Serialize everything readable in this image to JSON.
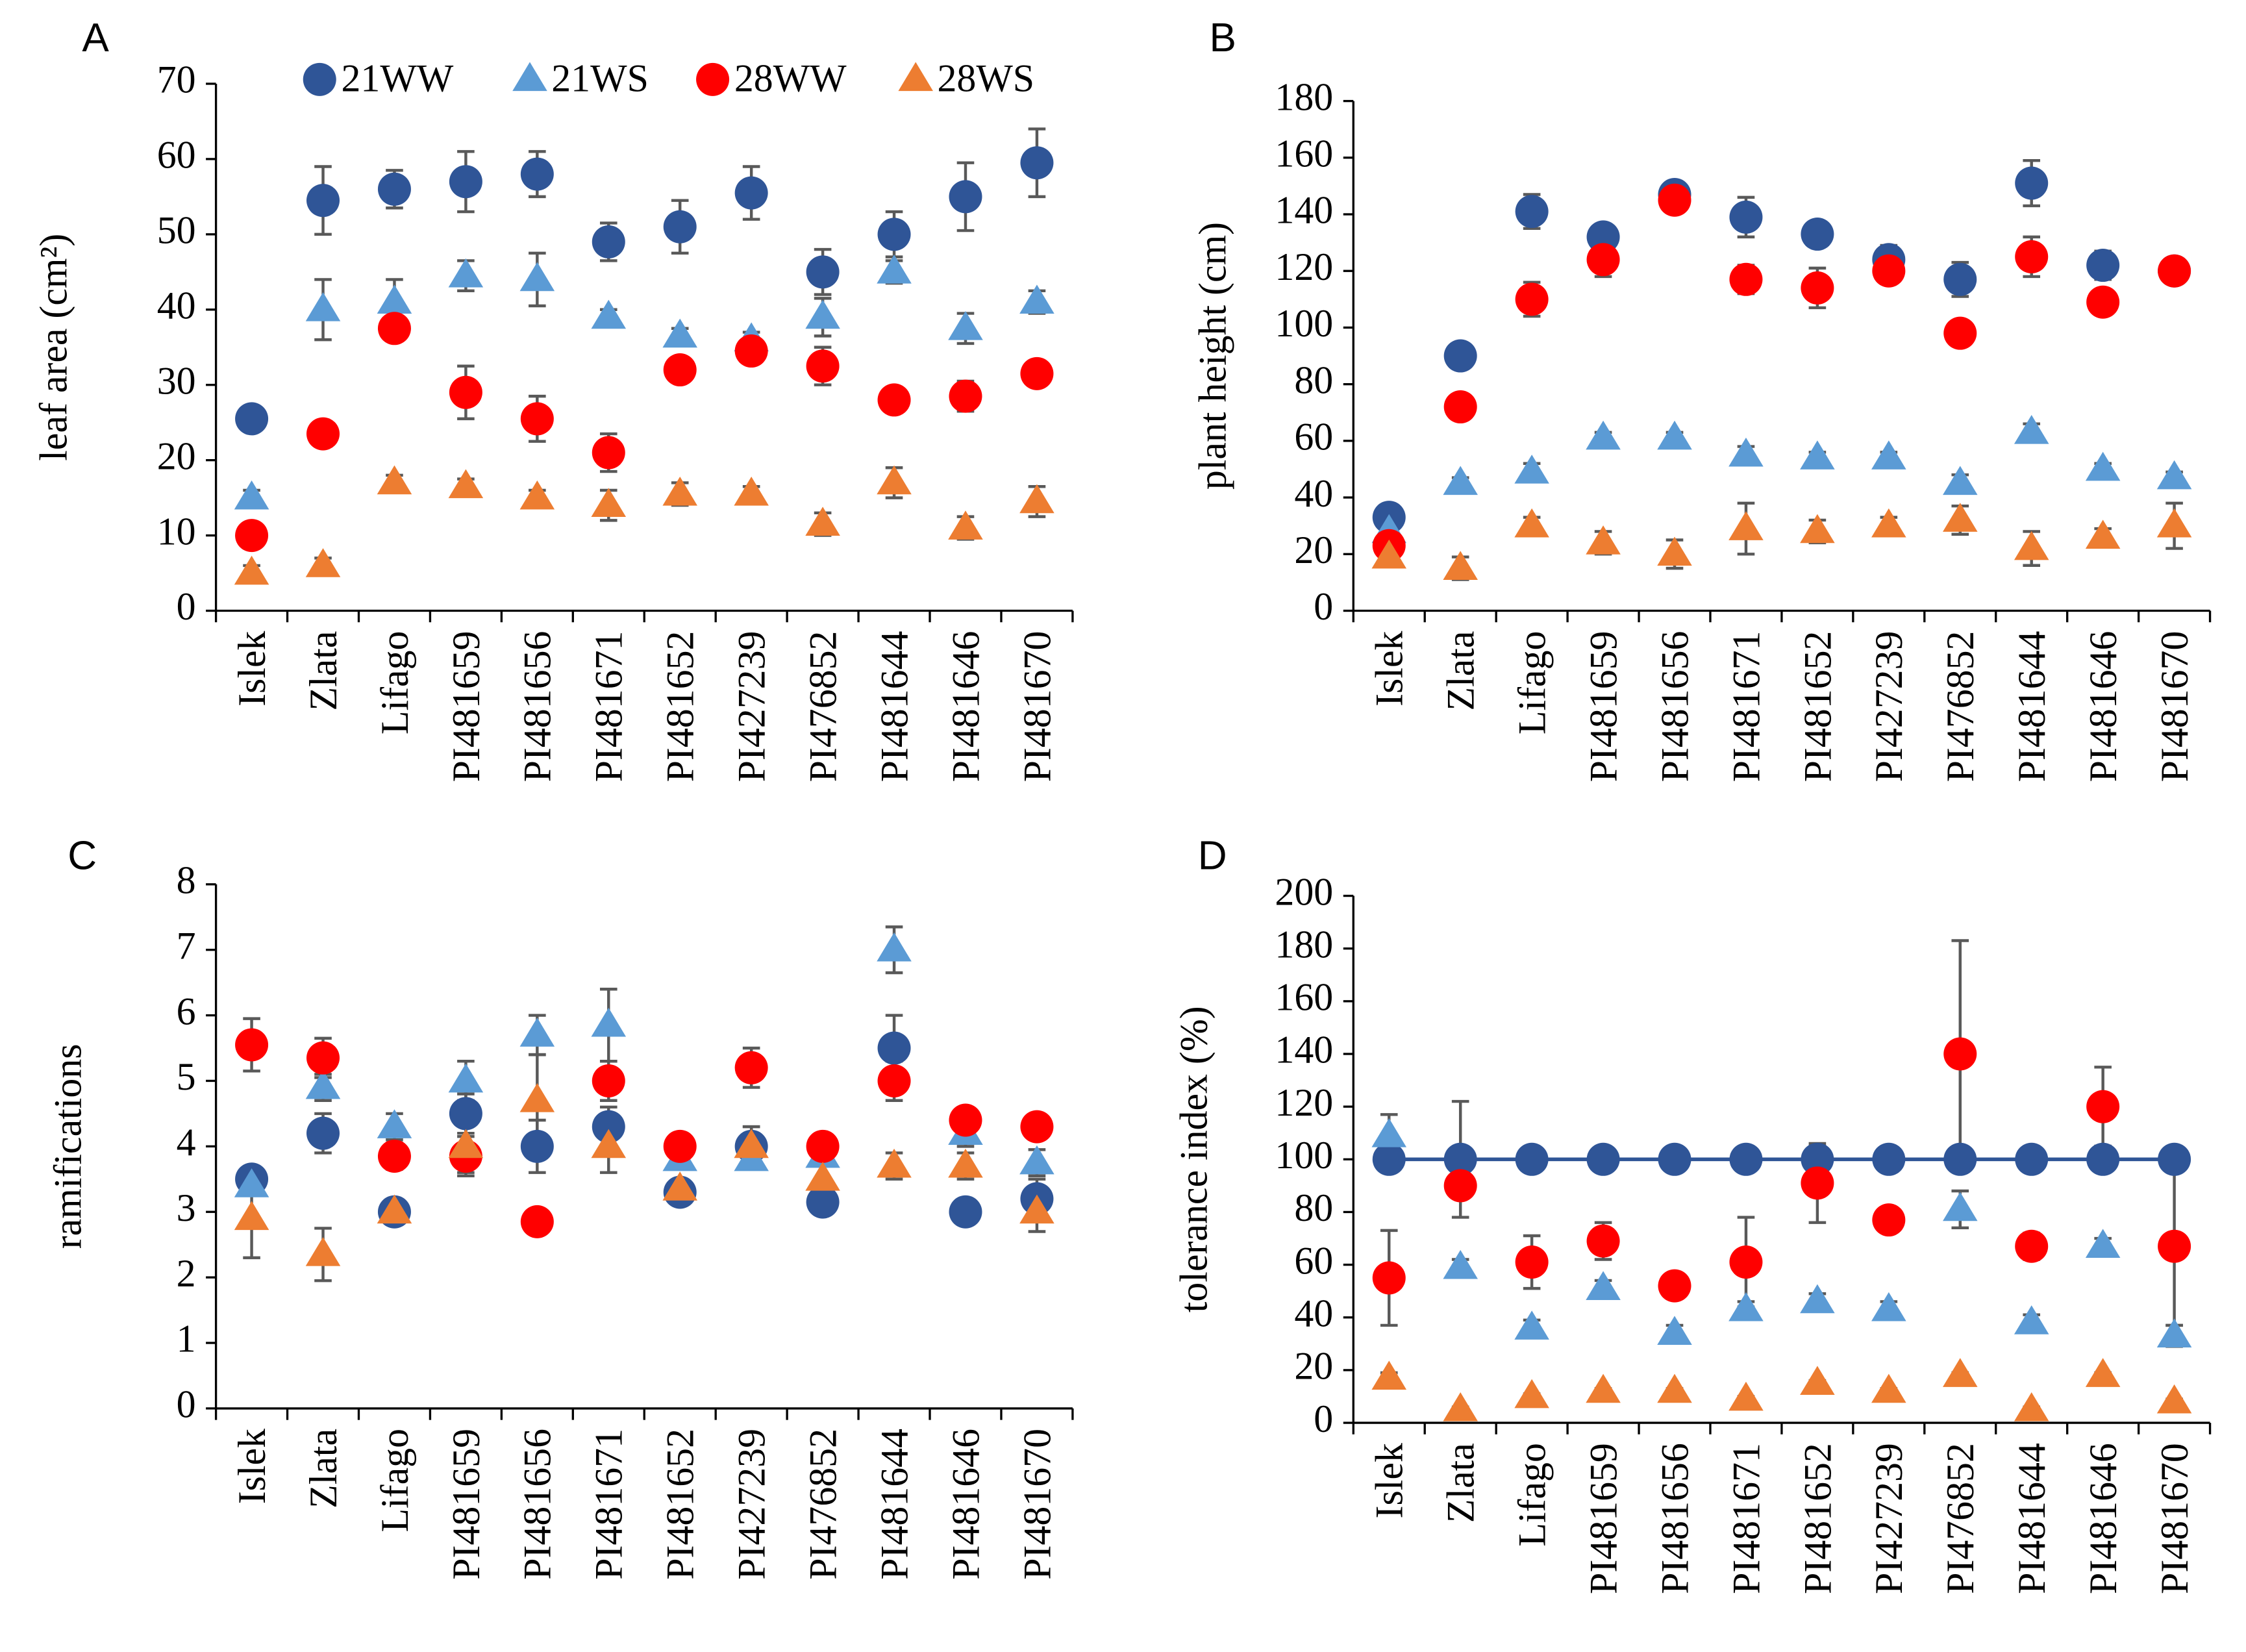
{
  "chart_data": [
    {
      "type": "scatter",
      "panel_label": "A",
      "y_label": "leaf area (cm²)",
      "legend": "top",
      "categories": [
        "Islek",
        "Zlata",
        "Lifago",
        "PI481659",
        "PI481656",
        "PI481671",
        "PI481652",
        "PI427239",
        "PI476852",
        "PI481644",
        "PI481646",
        "PI481670"
      ],
      "ylim": [
        0,
        70
      ],
      "yticks": [
        0,
        10,
        20,
        30,
        40,
        50,
        60,
        70
      ],
      "series": [
        {
          "name": "21WW",
          "color": "#2f5597",
          "marker": "circle",
          "values": [
            25.5,
            54.5,
            56,
            57,
            58,
            49,
            51,
            55.5,
            45,
            50,
            55,
            59.5
          ],
          "errors": [
            1,
            4.5,
            2.5,
            4,
            3,
            2.5,
            3.5,
            3.5,
            3,
            3,
            4.5,
            4.5
          ]
        },
        {
          "name": "21WS",
          "color": "#5b9bd5",
          "marker": "triangle",
          "values": [
            15,
            40,
            41,
            44.5,
            44,
            39,
            36.5,
            36,
            39,
            45,
            37.5,
            41
          ],
          "errors": [
            1,
            4,
            3,
            2,
            3.5,
            1,
            1,
            1,
            2.5,
            1.5,
            2,
            1.5
          ]
        },
        {
          "name": "28WW",
          "color": "#ff0000",
          "marker": "circle",
          "values": [
            10,
            23.5,
            37.5,
            29,
            25.5,
            21,
            32,
            34.5,
            32.5,
            28,
            28.5,
            31.5
          ],
          "errors": [
            1,
            1,
            1,
            3.5,
            3,
            2.5,
            1,
            1,
            2.5,
            1,
            2,
            1
          ]
        },
        {
          "name": "28WS",
          "color": "#ed7d31",
          "marker": "triangle",
          "values": [
            5,
            6,
            17,
            16.5,
            15,
            14,
            15.5,
            15.5,
            11.5,
            17,
            11,
            14.5
          ],
          "errors": [
            1,
            1,
            1,
            1,
            1,
            2,
            1.5,
            1,
            1.5,
            2,
            1.5,
            2
          ]
        }
      ]
    },
    {
      "type": "scatter",
      "panel_label": "B",
      "y_label": "plant height (cm)",
      "categories": [
        "Islek",
        "Zlata",
        "Lifago",
        "PI481659",
        "PI481656",
        "PI481671",
        "PI481652",
        "PI427239",
        "PI476852",
        "PI481644",
        "PI481646",
        "PI481670"
      ],
      "ylim": [
        0,
        180
      ],
      "yticks": [
        0,
        20,
        40,
        60,
        80,
        100,
        120,
        140,
        160,
        180
      ],
      "series": [
        {
          "color": "#2f5597",
          "marker": "circle",
          "values": [
            33,
            90,
            141,
            132,
            147,
            139,
            133,
            124,
            117,
            151,
            122,
            120
          ],
          "errors": [
            2,
            3,
            6,
            3,
            4,
            7,
            3,
            5,
            6,
            8,
            5,
            3
          ]
        },
        {
          "color": "#5b9bd5",
          "marker": "triangle",
          "values": [
            28,
            45,
            49,
            61,
            61,
            55,
            54,
            54,
            45,
            63,
            50,
            47
          ],
          "errors": [
            2,
            2,
            3,
            2,
            2,
            3,
            2,
            2,
            3,
            3,
            2,
            2
          ]
        },
        {
          "color": "#ff0000",
          "marker": "circle",
          "values": [
            23,
            72,
            110,
            124,
            145,
            117,
            114,
            120,
            98,
            125,
            109,
            120
          ],
          "errors": [
            2,
            3,
            6,
            6,
            3,
            5,
            7,
            3,
            3,
            7,
            3,
            3
          ]
        },
        {
          "color": "#ed7d31",
          "marker": "triangle",
          "values": [
            19,
            15,
            30,
            24,
            20,
            29,
            28,
            30,
            32,
            22,
            26,
            30
          ],
          "errors": [
            2,
            4,
            3,
            4,
            5,
            9,
            4,
            3,
            5,
            6,
            3,
            8
          ]
        }
      ]
    },
    {
      "type": "scatter",
      "panel_label": "C",
      "y_label": "ramifications",
      "categories": [
        "Islek",
        "Zlata",
        "Lifago",
        "PI481659",
        "PI481656",
        "PI481671",
        "PI481652",
        "PI427239",
        "PI476852",
        "PI481644",
        "PI481646",
        "PI481670"
      ],
      "ylim": [
        0,
        8
      ],
      "yticks": [
        0,
        1,
        2,
        3,
        4,
        5,
        6,
        7,
        8
      ],
      "series": [
        {
          "color": "#2f5597",
          "marker": "circle",
          "values": [
            3.5,
            4.2,
            3.0,
            4.5,
            4.0,
            4.3,
            3.3,
            4.0,
            3.15,
            5.5,
            3.0,
            3.2
          ],
          "errors": [
            0.1,
            0.3,
            0.1,
            0.3,
            0.4,
            0.3,
            0.15,
            0.3,
            0.15,
            0.5,
            0.1,
            0.3
          ]
        },
        {
          "color": "#5b9bd5",
          "marker": "triangle",
          "values": [
            3.4,
            4.9,
            4.3,
            5.0,
            5.7,
            5.85,
            3.8,
            3.8,
            3.85,
            7.0,
            4.2,
            3.75
          ],
          "errors": [
            0.1,
            0.2,
            0.2,
            0.3,
            0.3,
            0.55,
            0.15,
            0.15,
            0.15,
            0.35,
            0.2,
            0.2
          ]
        },
        {
          "color": "#ff0000",
          "marker": "circle",
          "values": [
            5.55,
            5.35,
            3.85,
            3.85,
            2.85,
            5.0,
            4.0,
            5.2,
            4.0,
            5.0,
            4.4,
            4.3
          ],
          "errors": [
            0.4,
            0.3,
            0.2,
            0.3,
            0.15,
            0.3,
            0.1,
            0.3,
            0.1,
            0.3,
            0.1,
            0.1
          ]
        },
        {
          "color": "#ed7d31",
          "marker": "triangle",
          "values": [
            2.9,
            2.35,
            3.0,
            4.0,
            4.7,
            4.0,
            3.35,
            4.0,
            3.5,
            3.7,
            3.7,
            3.0
          ],
          "errors": [
            0.6,
            0.4,
            0.1,
            0.4,
            0.7,
            0.4,
            0.1,
            0.3,
            0.2,
            0.2,
            0.2,
            0.3
          ]
        }
      ]
    },
    {
      "type": "scatter",
      "panel_label": "D",
      "y_label": "tolerance index (%)",
      "categories": [
        "Islek",
        "Zlata",
        "Lifago",
        "PI481659",
        "PI481656",
        "PI481671",
        "PI481652",
        "PI427239",
        "PI476852",
        "PI481644",
        "PI481646",
        "PI481670"
      ],
      "ylim": [
        0,
        200
      ],
      "yticks": [
        0,
        20,
        40,
        60,
        80,
        100,
        120,
        140,
        160,
        180,
        200
      ],
      "series": [
        {
          "color": "#2f5597",
          "marker": "circle",
          "line": true,
          "values": [
            100,
            100,
            100,
            100,
            100,
            100,
            100,
            100,
            100,
            100,
            100,
            100
          ],
          "errors": [
            0,
            22,
            0,
            0,
            0,
            0,
            5,
            0,
            0,
            0,
            0,
            0
          ]
        },
        {
          "color": "#5b9bd5",
          "marker": "triangle",
          "values": [
            109,
            59,
            36,
            51,
            34,
            43,
            46,
            43,
            81,
            38,
            67,
            33
          ],
          "errors": [
            8,
            3,
            3,
            3,
            3,
            3,
            3,
            3,
            7,
            3,
            3,
            4
          ]
        },
        {
          "color": "#ff0000",
          "marker": "circle",
          "values": [
            55,
            90,
            61,
            69,
            52,
            61,
            91,
            77,
            140,
            67,
            120,
            67
          ],
          "errors": [
            18,
            3,
            10,
            7,
            3,
            17,
            15,
            3,
            43,
            5,
            15,
            30
          ]
        },
        {
          "color": "#ed7d31",
          "marker": "triangle",
          "values": [
            17,
            5,
            10,
            12,
            12,
            9,
            15,
            12,
            18,
            5,
            18,
            8
          ],
          "errors": [
            2,
            1,
            1,
            1,
            1,
            1,
            1,
            1,
            1,
            1,
            1,
            1
          ]
        }
      ]
    }
  ]
}
